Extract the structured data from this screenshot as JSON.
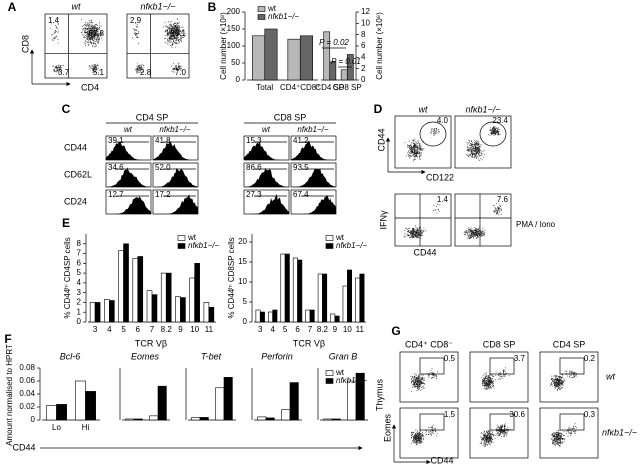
{
  "figure": {
    "A": {
      "label": "A",
      "wt": "wt",
      "ko": "nfκb1−/−",
      "y_axis": "CD8",
      "x_axis": "CD4",
      "wt_quadrants": [
        "1.4",
        "87.8",
        "3.7",
        "5.1"
      ],
      "ko_quadrants": [
        "2.9",
        "85.1",
        "2.8",
        "7.0"
      ]
    },
    "B": {
      "label": "B"
    },
    "C": {
      "label": "C",
      "groups": [
        "CD4 SP",
        "CD8 SP"
      ],
      "columns": [
        "wt",
        "nfκb1−/−"
      ],
      "rows": [
        "CD44",
        "CD62L",
        "CD24"
      ],
      "cd4_wt": [
        "39.1",
        "34.6",
        "12.7"
      ],
      "cd4_ko": [
        "41.8",
        "52.0",
        "17.2"
      ],
      "cd8_wt": [
        "15.3",
        "86.6",
        "27.3"
      ],
      "cd8_ko": [
        "41.2",
        "93.5",
        "67.4"
      ]
    },
    "D": {
      "label": "D",
      "wt": "wt",
      "ko": "nfκb1−/−",
      "top_y": "CD44",
      "top_x": "CD122",
      "top_values": [
        "4.0",
        "23.4"
      ],
      "bottom_y": "IFNγ",
      "bottom_x": "CD44",
      "bottom_values": [
        "1.4",
        "7.6"
      ],
      "stimulus": "PMA / Iono"
    },
    "E": {
      "label": "E"
    },
    "F": {
      "label": "F",
      "ylabel": "Amount normalised to HPRT",
      "xlabel": "CD44",
      "tissue": "Thymus"
    },
    "G": {
      "label": "G",
      "columns": [
        "CD4⁺ CD8⁻",
        "CD8 SP",
        "CD4 SP"
      ],
      "rows": [
        "wt",
        "nfκb1−/−"
      ],
      "wt_values": [
        "0.5",
        "3.7",
        "0.2"
      ],
      "ko_values": [
        "1.5",
        "30.6",
        "0.3"
      ],
      "y_axis": "Eomes",
      "x_axis": "CD44"
    }
  },
  "chart_data": [
    {
      "type": "bar",
      "ylabel": "Cell number (×10⁸)",
      "y2label": "Cell number (×10⁶)",
      "categories": [
        "Total",
        "CD4⁺CD8⁺"
      ],
      "categories_y2": [
        "CD4 SP",
        "CD8 SP"
      ],
      "series": [
        {
          "name": "wt",
          "color": "#b8b8b8",
          "values": [
            130,
            120
          ],
          "values_y2": [
            8.5,
            1.8
          ]
        },
        {
          "name": "nfκb1−/−",
          "color": "#666666",
          "values": [
            150,
            130
          ],
          "values_y2": [
            3.2,
            4.5
          ]
        }
      ],
      "ylim": [
        0,
        200
      ],
      "yticks": [
        0,
        50,
        100,
        150,
        200
      ],
      "y2lim": [
        0,
        12
      ],
      "y2ticks": [
        0,
        2,
        4,
        6,
        8,
        10,
        12
      ],
      "annotations": [
        "P = 0.02",
        "P = 0.01"
      ],
      "legend": true
    },
    {
      "type": "bar",
      "ylabel": "% CD44ʰⁱ CD4SP cells",
      "xlabel": "TCR Vβ",
      "categories": [
        "3",
        "4",
        "5",
        "6",
        "7",
        "8.2",
        "9",
        "10",
        "11"
      ],
      "series": [
        {
          "name": "wt",
          "color": "#ffffff",
          "values": [
            2,
            2.3,
            7.3,
            6.5,
            3.2,
            5,
            2.6,
            4.5,
            2
          ]
        },
        {
          "name": "nfκb1−/−",
          "color": "#000000",
          "values": [
            2,
            2.2,
            8,
            6.7,
            2.8,
            5,
            2.5,
            6,
            1.5
          ]
        }
      ],
      "ylim": [
        0,
        9
      ],
      "yticks": [
        0,
        1,
        2,
        3,
        4,
        5,
        6,
        7,
        8
      ],
      "legend": true
    },
    {
      "type": "bar",
      "ylabel": "% CD44ʰⁱ CD8SP cells",
      "xlabel": "TCR Vβ",
      "categories": [
        "3",
        "4",
        "5",
        "6",
        "7",
        "8.2",
        "9",
        "10",
        "11"
      ],
      "series": [
        {
          "name": "wt",
          "color": "#ffffff",
          "values": [
            3,
            2.5,
            17,
            16,
            3,
            12,
            2,
            9,
            11
          ]
        },
        {
          "name": "nfκb1−/−",
          "color": "#000000",
          "values": [
            2.5,
            3,
            17,
            15.5,
            3,
            12,
            1.5,
            13,
            12
          ]
        }
      ],
      "ylim": [
        0,
        22
      ],
      "yticks": [
        0,
        5,
        10,
        15,
        20
      ],
      "legend": true
    },
    {
      "type": "bar",
      "title": "Bcl-6",
      "categories": [
        "Lo",
        "Hi"
      ],
      "series": [
        {
          "color": "#ffffff",
          "values": [
            0.022,
            0.06
          ]
        },
        {
          "color": "#000000",
          "values": [
            0.024,
            0.044
          ]
        }
      ],
      "ylim": [
        0,
        0.08
      ],
      "yticks": [
        0,
        0.02,
        0.04,
        0.06,
        0.08
      ]
    },
    {
      "type": "bar",
      "title": "Eomes",
      "series": [
        {
          "color": "#ffffff",
          "values": [
            0.02,
            0.08
          ]
        },
        {
          "color": "#000000",
          "values": [
            0.02,
            0.65
          ]
        }
      ],
      "ylim": [
        0,
        1
      ]
    },
    {
      "type": "bar",
      "title": "T-bet",
      "series": [
        {
          "color": "#ffffff",
          "values": [
            0.05,
            0.62
          ]
        },
        {
          "color": "#000000",
          "values": [
            0.05,
            0.82
          ]
        }
      ],
      "ylim": [
        0,
        1
      ]
    },
    {
      "type": "bar",
      "title": "Perforin",
      "series": [
        {
          "color": "#ffffff",
          "values": [
            0.06,
            0.2
          ]
        },
        {
          "color": "#000000",
          "values": [
            0.04,
            0.72
          ]
        }
      ],
      "ylim": [
        0,
        1
      ]
    },
    {
      "type": "bar",
      "title": "Gran B",
      "series": [
        {
          "name": "wt",
          "color": "#ffffff",
          "values": [
            0.02,
            0.75
          ]
        },
        {
          "name": "nfκb1−/−",
          "color": "#000000",
          "values": [
            0.02,
            0.9
          ]
        }
      ],
      "ylim": [
        0,
        1
      ],
      "legend": true
    }
  ]
}
